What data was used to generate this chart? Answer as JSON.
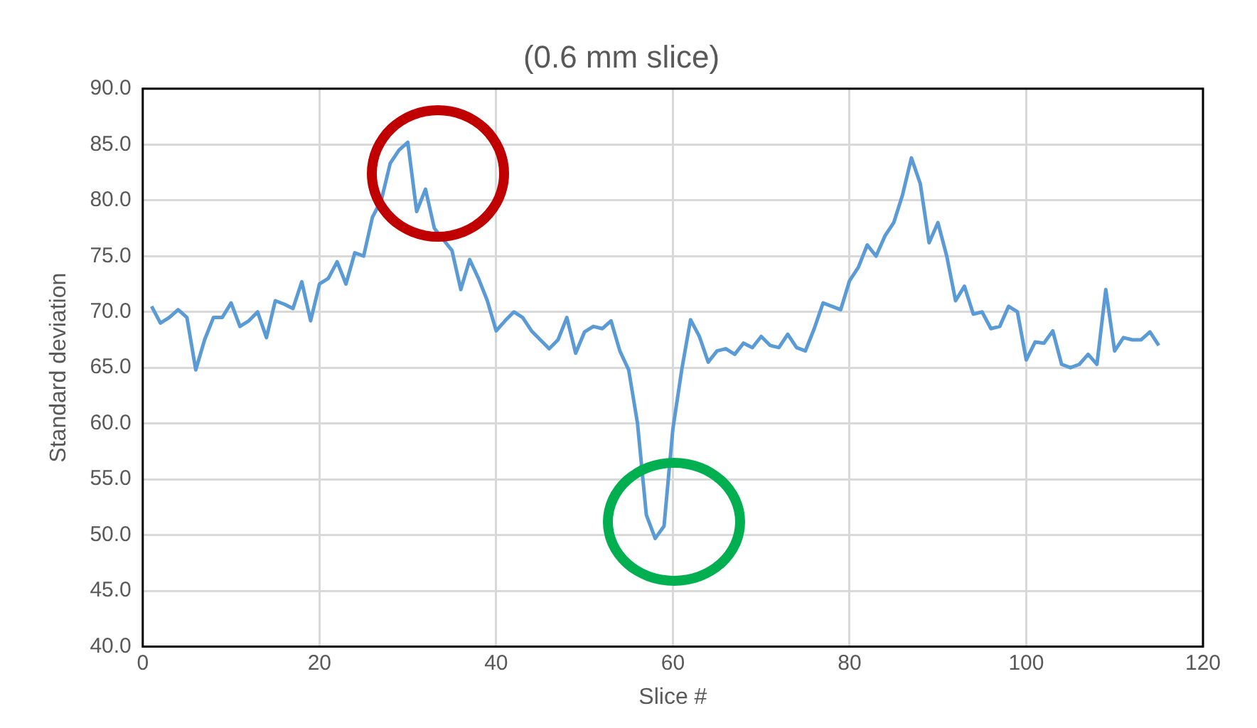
{
  "chart_data": {
    "type": "line",
    "title": "(0.6 mm slice)",
    "xlabel": "Slice #",
    "ylabel": "Standard deviation",
    "x": [
      1,
      2,
      3,
      4,
      5,
      6,
      7,
      8,
      9,
      10,
      11,
      12,
      13,
      14,
      15,
      16,
      17,
      18,
      19,
      20,
      21,
      22,
      23,
      24,
      25,
      26,
      27,
      28,
      29,
      30,
      31,
      32,
      33,
      34,
      35,
      36,
      37,
      38,
      39,
      40,
      41,
      42,
      43,
      44,
      45,
      46,
      47,
      48,
      49,
      50,
      51,
      52,
      53,
      54,
      55,
      56,
      57,
      58,
      59,
      60,
      61,
      62,
      63,
      64,
      65,
      66,
      67,
      68,
      69,
      70,
      71,
      72,
      73,
      74,
      75,
      76,
      77,
      78,
      79,
      80,
      81,
      82,
      83,
      84,
      85,
      86,
      87,
      88,
      89,
      90,
      91,
      92,
      93,
      94,
      95,
      96,
      97,
      98,
      99,
      100,
      101,
      102,
      103,
      104,
      105,
      106,
      107,
      108,
      109,
      110,
      111,
      112,
      113,
      114,
      115
    ],
    "series": [
      {
        "color": "#5b9bd5",
        "values": [
          70.5,
          69.0,
          69.5,
          70.2,
          69.5,
          64.8,
          67.5,
          69.5,
          69.5,
          70.8,
          68.7,
          69.2,
          70.0,
          67.7,
          71.0,
          70.7,
          70.3,
          72.7,
          69.2,
          72.5,
          73.0,
          74.5,
          72.5,
          75.3,
          75.0,
          78.5,
          80.0,
          83.3,
          84.5,
          85.2,
          79.0,
          81.0,
          77.5,
          76.5,
          75.5,
          72.0,
          74.7,
          73.0,
          71.0,
          68.3,
          69.2,
          70.0,
          69.5,
          68.3,
          67.5,
          66.7,
          67.5,
          69.5,
          66.3,
          68.2,
          68.7,
          68.5,
          69.2,
          66.5,
          64.8,
          60.0,
          51.8,
          49.7,
          50.8,
          59.5,
          64.8,
          69.3,
          67.8,
          65.5,
          66.5,
          66.7,
          66.2,
          67.2,
          66.8,
          67.8,
          67.0,
          66.8,
          68.0,
          66.8,
          66.5,
          68.5,
          70.8,
          70.5,
          70.2,
          72.8,
          74.0,
          76.0,
          75.0,
          76.8,
          78.0,
          80.5,
          83.8,
          81.5,
          76.2,
          78.0,
          75.0,
          71.0,
          72.3,
          69.8,
          70.0,
          68.5,
          68.7,
          70.5,
          70.0,
          65.7,
          67.3,
          67.2,
          68.3,
          65.3,
          65.0,
          65.3,
          66.2,
          65.3,
          72.0,
          66.5,
          67.7,
          67.5,
          67.5,
          68.2,
          67.0
        ]
      }
    ],
    "xlim": [
      0,
      120
    ],
    "xticks": [
      0,
      20,
      40,
      60,
      80,
      100,
      120
    ],
    "ylim": [
      40,
      90
    ],
    "yticks": [
      {
        "value": 40,
        "label": "40.0"
      },
      {
        "value": 45,
        "label": "45.0"
      },
      {
        "value": 50,
        "label": "50.0"
      },
      {
        "value": 55,
        "label": "55.0"
      },
      {
        "value": 60,
        "label": "60.0"
      },
      {
        "value": 65,
        "label": "65.0"
      },
      {
        "value": 70,
        "label": "70.0"
      },
      {
        "value": 75,
        "label": "75.0"
      },
      {
        "value": 80,
        "label": "80.0"
      },
      {
        "value": 85,
        "label": "85.0"
      },
      {
        "value": 90,
        "label": "90.0"
      }
    ],
    "grid": true,
    "legend": false,
    "marker": "none",
    "line_style": "solid"
  }
}
